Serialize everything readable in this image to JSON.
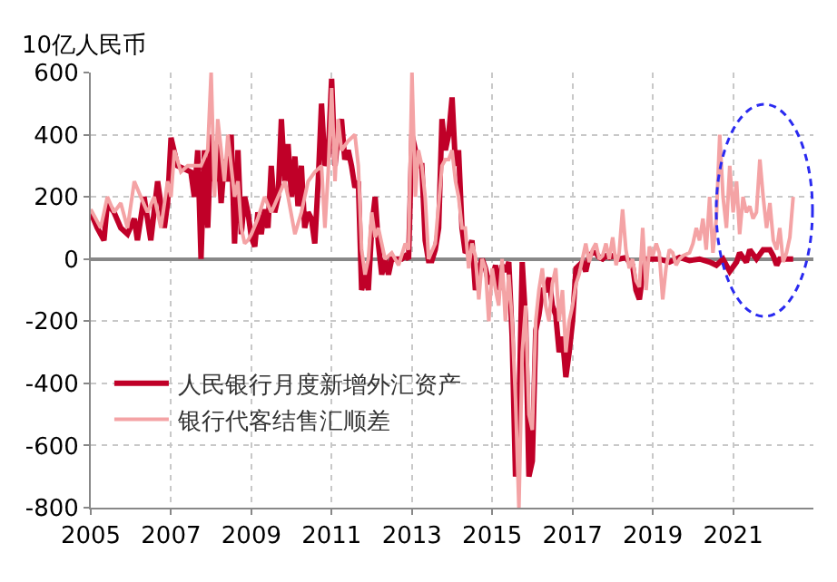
{
  "chart_data": {
    "type": "line",
    "ylabel": "10亿人民币",
    "x": [
      "2005-01",
      "2005-03",
      "2005-05",
      "2005-06",
      "2005-08",
      "2005-10",
      "2005-12",
      "2006-02",
      "2006-03",
      "2006-05",
      "2006-07",
      "2006-09",
      "2006-11",
      "2006-12",
      "2007-01",
      "2007-03",
      "2007-05",
      "2007-07",
      "2007-08",
      "2007-09",
      "2007-10",
      "2007-11",
      "2007-12",
      "2008-01",
      "2008-02",
      "2008-03",
      "2008-04",
      "2008-05",
      "2008-06",
      "2008-07",
      "2008-08",
      "2008-09",
      "2008-10",
      "2008-11",
      "2008-12",
      "2009-01",
      "2009-02",
      "2009-03",
      "2009-04",
      "2009-05",
      "2009-06",
      "2009-07",
      "2009-08",
      "2009-09",
      "2009-10",
      "2009-11",
      "2009-12",
      "2010-01",
      "2010-02",
      "2010-03",
      "2010-04",
      "2010-05",
      "2010-06",
      "2010-07",
      "2010-08",
      "2010-09",
      "2010-10",
      "2010-11",
      "2010-12",
      "2011-01",
      "2011-02",
      "2011-03",
      "2011-04",
      "2011-05",
      "2011-06",
      "2011-07",
      "2011-08",
      "2011-09",
      "2011-10",
      "2011-11",
      "2011-12",
      "2012-01",
      "2012-02",
      "2012-03",
      "2012-04",
      "2012-05",
      "2012-06",
      "2012-07",
      "2012-08",
      "2012-09",
      "2012-10",
      "2012-11",
      "2012-12",
      "2013-01",
      "2013-02",
      "2013-03",
      "2013-04",
      "2013-05",
      "2013-06",
      "2013-07",
      "2013-08",
      "2013-09",
      "2013-10",
      "2013-11",
      "2013-12",
      "2014-01",
      "2014-02",
      "2014-03",
      "2014-04",
      "2014-05",
      "2014-06",
      "2014-07",
      "2014-08",
      "2014-09",
      "2014-10",
      "2014-11",
      "2014-12",
      "2015-01",
      "2015-02",
      "2015-03",
      "2015-04",
      "2015-05",
      "2015-06",
      "2015-07",
      "2015-08",
      "2015-09",
      "2015-10",
      "2015-11",
      "2015-12",
      "2016-01",
      "2016-02",
      "2016-03",
      "2016-04",
      "2016-05",
      "2016-06",
      "2016-07",
      "2016-08",
      "2016-09",
      "2016-10",
      "2016-11",
      "2016-12",
      "2017-01",
      "2017-02",
      "2017-03",
      "2017-04",
      "2017-05",
      "2017-06",
      "2017-07",
      "2017-08",
      "2017-09",
      "2017-10",
      "2017-11",
      "2017-12",
      "2018-01",
      "2018-03",
      "2018-05",
      "2018-06",
      "2018-07",
      "2018-08",
      "2018-09",
      "2018-10",
      "2018-11",
      "2018-12",
      "2019-03",
      "2019-06",
      "2019-09",
      "2019-12",
      "2020-03",
      "2020-06",
      "2020-08",
      "2020-10",
      "2020-12",
      "2021-02",
      "2021-03",
      "2021-05",
      "2021-06",
      "2021-08",
      "2021-10",
      "2021-12",
      "2022-01",
      "2022-02",
      "2022-03",
      "2022-05",
      "2022-07"
    ],
    "series": [
      {
        "name": "人民银行月度新增外汇资产",
        "color": "#c00028",
        "values": [
          150,
          100,
          60,
          180,
          150,
          100,
          80,
          130,
          60,
          200,
          60,
          250,
          100,
          180,
          390,
          300,
          290,
          280,
          200,
          350,
          0,
          350,
          100,
          400,
          250,
          380,
          180,
          320,
          250,
          400,
          50,
          350,
          80,
          200,
          150,
          70,
          40,
          150,
          80,
          160,
          100,
          300,
          150,
          200,
          450,
          250,
          370,
          200,
          330,
          170,
          300,
          100,
          150,
          130,
          50,
          250,
          500,
          300,
          330,
          580,
          300,
          400,
          450,
          320,
          350,
          300,
          230,
          250,
          -100,
          -50,
          -100,
          100,
          200,
          50,
          -50,
          0,
          -50,
          0,
          0,
          0,
          0,
          10,
          0,
          400,
          350,
          300,
          300,
          60,
          -5,
          -5,
          30,
          100,
          450,
          350,
          400,
          520,
          300,
          350,
          100,
          20,
          30,
          60,
          -100,
          -30,
          0,
          -30,
          -80,
          -60,
          -20,
          -100,
          -20,
          -40,
          -10,
          -250,
          -700,
          -500,
          -10,
          -200,
          -700,
          -650,
          -230,
          -180,
          -100,
          -100,
          -60,
          -150,
          -180,
          -300,
          -250,
          -380,
          -300,
          -200,
          -30,
          -20,
          -10,
          -40,
          10,
          20,
          20,
          5,
          0,
          10,
          5,
          10,
          0,
          5,
          -10,
          -20,
          -100,
          -130,
          -50,
          0,
          0,
          0,
          -10,
          5,
          -5,
          0,
          -10,
          -20,
          0,
          -40,
          -10,
          20,
          -10,
          30,
          0,
          30,
          30,
          10,
          -20,
          0,
          0,
          0
        ]
      },
      {
        "name": "银行代客结售汇顺差",
        "color": "#f4a3a5",
        "x": [
          "2005-01",
          "2005-04",
          "2005-06",
          "2005-08",
          "2005-10",
          "2005-12",
          "2006-02",
          "2006-04",
          "2006-06",
          "2006-08",
          "2006-10",
          "2006-12",
          "2007-01",
          "2007-02",
          "2007-04",
          "2007-06",
          "2007-08",
          "2007-10",
          "2007-12",
          "2008-01",
          "2008-02",
          "2008-03",
          "2008-04",
          "2008-05",
          "2008-06",
          "2008-07",
          "2008-08",
          "2008-09",
          "2008-10",
          "2008-11",
          "2008-12",
          "2009-01",
          "2009-03",
          "2009-05",
          "2009-07",
          "2009-09",
          "2009-11",
          "2009-12",
          "2010-02",
          "2010-04",
          "2010-06",
          "2010-08",
          "2010-10",
          "2010-11",
          "2010-12",
          "2011-01",
          "2011-02",
          "2011-03",
          "2011-04",
          "2011-06",
          "2011-08",
          "2011-09",
          "2011-10",
          "2011-11",
          "2011-12",
          "2012-01",
          "2012-02",
          "2012-03",
          "2012-05",
          "2012-07",
          "2012-09",
          "2012-11",
          "2012-12",
          "2013-01",
          "2013-02",
          "2013-03",
          "2013-04",
          "2013-05",
          "2013-06",
          "2013-08",
          "2013-10",
          "2013-11",
          "2013-12",
          "2014-01",
          "2014-02",
          "2014-03",
          "2014-04",
          "2014-05",
          "2014-06",
          "2014-07",
          "2014-08",
          "2014-09",
          "2014-10",
          "2014-11",
          "2014-12",
          "2015-01",
          "2015-02",
          "2015-03",
          "2015-04",
          "2015-05",
          "2015-06",
          "2015-07",
          "2015-08",
          "2015-09",
          "2015-10",
          "2015-11",
          "2015-12",
          "2016-01",
          "2016-02",
          "2016-03",
          "2016-04",
          "2016-05",
          "2016-06",
          "2016-07",
          "2016-08",
          "2016-09",
          "2016-10",
          "2016-11",
          "2016-12",
          "2017-01",
          "2017-02",
          "2017-03",
          "2017-04",
          "2017-05",
          "2017-06",
          "2017-07",
          "2017-08",
          "2017-09",
          "2017-10",
          "2017-11",
          "2017-12",
          "2018-01",
          "2018-02",
          "2018-03",
          "2018-04",
          "2018-05",
          "2018-06",
          "2018-07",
          "2018-08",
          "2018-09",
          "2018-10",
          "2018-11",
          "2018-12",
          "2019-01",
          "2019-02",
          "2019-03",
          "2019-04",
          "2019-05",
          "2019-06",
          "2019-07",
          "2019-08",
          "2019-09",
          "2019-10",
          "2019-12",
          "2020-01",
          "2020-02",
          "2020-03",
          "2020-04",
          "2020-05",
          "2020-06",
          "2020-07",
          "2020-08",
          "2020-09",
          "2020-10",
          "2020-11",
          "2020-12",
          "2021-01",
          "2021-02",
          "2021-03",
          "2021-04",
          "2021-05",
          "2021-06",
          "2021-07",
          "2021-08",
          "2021-09",
          "2021-10",
          "2021-11",
          "2021-12",
          "2022-01",
          "2022-02",
          "2022-03",
          "2022-04",
          "2022-05",
          "2022-06",
          "2022-07"
        ],
        "values": [
          160,
          100,
          200,
          150,
          180,
          100,
          250,
          200,
          150,
          200,
          100,
          250,
          200,
          350,
          280,
          300,
          300,
          300,
          350,
          600,
          200,
          450,
          350,
          250,
          400,
          300,
          200,
          250,
          100,
          50,
          60,
          80,
          130,
          200,
          150,
          200,
          250,
          200,
          80,
          150,
          250,
          280,
          300,
          100,
          280,
          550,
          250,
          450,
          350,
          380,
          400,
          300,
          30,
          -50,
          0,
          150,
          70,
          100,
          0,
          20,
          -20,
          50,
          30,
          600,
          200,
          350,
          300,
          200,
          0,
          50,
          300,
          320,
          320,
          350,
          250,
          200,
          100,
          100,
          -30,
          50,
          10,
          -130,
          0,
          -30,
          -200,
          -30,
          -100,
          -150,
          0,
          -200,
          -50,
          -200,
          -450,
          -800,
          -300,
          -150,
          -500,
          -550,
          -200,
          -100,
          -30,
          -150,
          -200,
          -80,
          -30,
          -200,
          -100,
          -300,
          -200,
          -150,
          -80,
          -50,
          0,
          50,
          -10,
          30,
          50,
          0,
          10,
          50,
          0,
          70,
          -20,
          20,
          160,
          30,
          -30,
          0,
          -70,
          -90,
          100,
          -100,
          40,
          10,
          50,
          20,
          -130,
          -30,
          30,
          20,
          -20,
          0,
          10,
          20,
          50,
          100,
          60,
          130,
          30,
          200,
          20,
          130,
          400,
          200,
          100,
          300,
          150,
          250,
          80,
          200,
          150,
          170,
          130,
          150,
          320,
          200,
          100,
          180,
          60,
          30,
          100,
          -10,
          20,
          70,
          200
        ]
      }
    ],
    "xlim": [
      "2005-01-01",
      "2023-01-01"
    ],
    "xticks": [
      "2005",
      "2007",
      "2009",
      "2011",
      "2013",
      "2015",
      "2017",
      "2019",
      "2021"
    ],
    "ylim": [
      -800,
      600
    ],
    "yticks": [
      -800,
      -600,
      -400,
      -200,
      0,
      200,
      400,
      600
    ],
    "grid": true,
    "legend": "bottom left",
    "line_style": "solid",
    "marker": "none"
  }
}
